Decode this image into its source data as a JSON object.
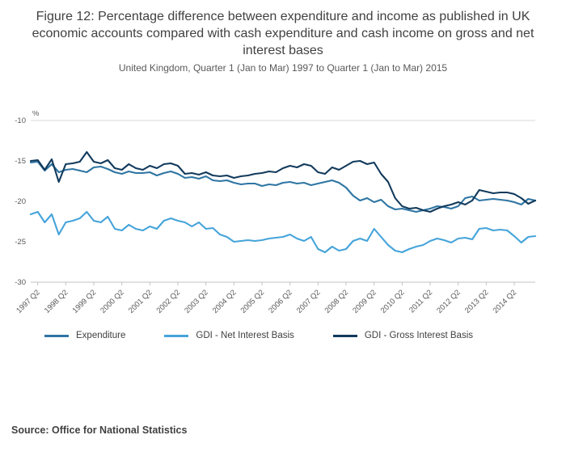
{
  "header": {
    "title": "Figure 12: Percentage difference between expenditure and income as published in UK economic accounts compared with cash expenditure and cash income on gross and net interest bases",
    "subtitle": "United Kingdom, Quarter 1 (Jan to Mar) 1997 to Quarter 1 (Jan to Mar) 2015"
  },
  "chart_data": {
    "type": "line",
    "title": "Figure 12: Percentage difference between expenditure and income as published in UK economic accounts compared with cash expenditure and cash income on gross and net interest bases",
    "subtitle": "United Kingdom, Quarter 1 (Jan to Mar) 1997 to Quarter 1 (Jan to Mar) 2015",
    "unit_label": "%",
    "xlabel": "",
    "ylabel": "%",
    "ylim": [
      -30,
      -10
    ],
    "yticks": [
      -10,
      -15,
      -20,
      -25,
      -30
    ],
    "grid": "top and bottom rule only",
    "legend_position": "bottom",
    "x_start": "1997 Q1",
    "x_end": "2015 Q1",
    "x_frequency": "quarterly",
    "x_tick_labels": [
      "1997 Q2",
      "1998 Q2",
      "1999 Q2",
      "2000 Q2",
      "2001 Q2",
      "2002 Q2",
      "2003 Q2",
      "2004 Q2",
      "2005 Q2",
      "2006 Q2",
      "2007 Q2",
      "2008 Q2",
      "2009 Q2",
      "2010 Q2",
      "2011 Q2",
      "2012 Q2",
      "2013 Q2",
      "2014 Q2"
    ],
    "x_tick_indices": [
      1,
      5,
      9,
      13,
      17,
      21,
      25,
      29,
      33,
      37,
      41,
      45,
      49,
      53,
      57,
      61,
      65,
      69
    ],
    "series": [
      {
        "name": "Expenditure",
        "color": "#2e75a3",
        "values": [
          -15.2,
          -15.1,
          -16.2,
          -15.4,
          -16.4,
          -16.1,
          -16.0,
          -16.2,
          -16.4,
          -15.8,
          -15.7,
          -16.0,
          -16.4,
          -16.6,
          -16.3,
          -16.5,
          -16.5,
          -16.4,
          -16.8,
          -16.5,
          -16.3,
          -16.6,
          -17.1,
          -17.0,
          -17.2,
          -16.9,
          -17.4,
          -17.5,
          -17.4,
          -17.7,
          -17.9,
          -17.8,
          -17.8,
          -18.1,
          -17.9,
          -18.0,
          -17.7,
          -17.6,
          -17.8,
          -17.7,
          -18.0,
          -17.8,
          -17.6,
          -17.4,
          -17.7,
          -18.3,
          -19.3,
          -19.9,
          -19.6,
          -20.1,
          -19.8,
          -20.6,
          -21.0,
          -20.9,
          -21.1,
          -21.3,
          -21.1,
          -20.9,
          -20.6,
          -20.7,
          -20.9,
          -20.6,
          -19.6,
          -19.4,
          -19.9,
          -19.8,
          -19.7,
          -19.8,
          -19.9,
          -20.1,
          -20.4,
          -19.7,
          -19.9
        ]
      },
      {
        "name": "GDI - Net Interest Basis",
        "color": "#45a4da",
        "values": [
          -21.6,
          -21.3,
          -22.6,
          -21.6,
          -24.1,
          -22.6,
          -22.4,
          -22.1,
          -21.3,
          -22.4,
          -22.6,
          -21.9,
          -23.4,
          -23.6,
          -22.9,
          -23.4,
          -23.6,
          -23.1,
          -23.4,
          -22.4,
          -22.1,
          -22.4,
          -22.6,
          -23.1,
          -22.6,
          -23.4,
          -23.3,
          -24.1,
          -24.4,
          -25.0,
          -24.9,
          -24.8,
          -24.9,
          -24.8,
          -24.6,
          -24.5,
          -24.4,
          -24.1,
          -24.6,
          -24.9,
          -24.4,
          -25.9,
          -26.3,
          -25.6,
          -26.1,
          -25.9,
          -24.9,
          -24.6,
          -24.9,
          -23.4,
          -24.4,
          -25.4,
          -26.1,
          -26.3,
          -25.9,
          -25.6,
          -25.4,
          -24.9,
          -24.6,
          -24.8,
          -25.1,
          -24.6,
          -24.5,
          -24.7,
          -23.4,
          -23.3,
          -23.6,
          -23.5,
          -23.6,
          -24.3,
          -25.1,
          -24.4,
          -24.3
        ]
      },
      {
        "name": "GDI - Gross Interest Basis",
        "color": "#123a5c",
        "values": [
          -15.0,
          -14.9,
          -16.1,
          -14.8,
          -17.6,
          -15.4,
          -15.3,
          -15.1,
          -13.9,
          -15.1,
          -15.3,
          -14.9,
          -15.9,
          -16.1,
          -15.4,
          -15.9,
          -16.1,
          -15.6,
          -15.9,
          -15.4,
          -15.3,
          -15.6,
          -16.6,
          -16.5,
          -16.7,
          -16.4,
          -16.8,
          -16.9,
          -16.8,
          -17.1,
          -16.9,
          -16.8,
          -16.6,
          -16.5,
          -16.3,
          -16.4,
          -15.9,
          -15.6,
          -15.8,
          -15.4,
          -15.6,
          -16.4,
          -16.6,
          -15.8,
          -16.1,
          -15.6,
          -15.1,
          -15.0,
          -15.4,
          -15.2,
          -16.6,
          -17.6,
          -19.6,
          -20.6,
          -20.9,
          -20.8,
          -21.1,
          -21.3,
          -20.9,
          -20.6,
          -20.4,
          -20.1,
          -20.4,
          -19.9,
          -18.6,
          -18.8,
          -19.0,
          -18.9,
          -18.9,
          -19.1,
          -19.6,
          -20.3,
          -19.9
        ]
      }
    ]
  },
  "source": {
    "text": "Source: Office for National Statistics"
  }
}
